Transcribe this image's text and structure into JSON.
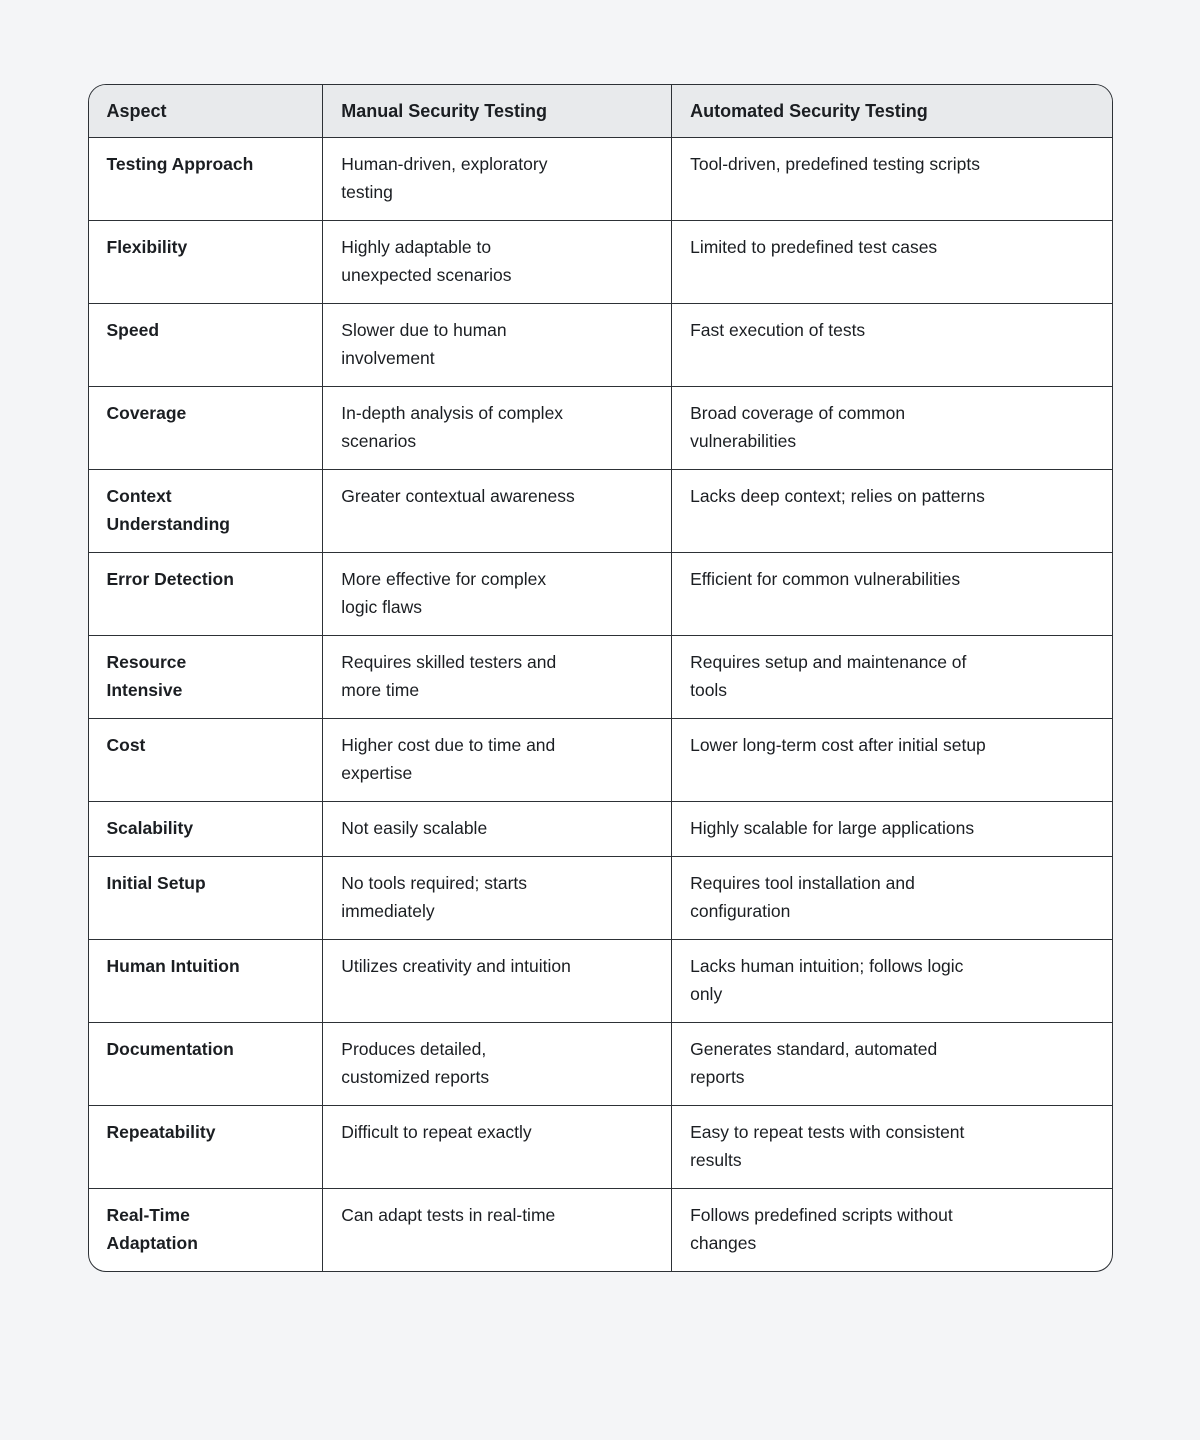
{
  "style": {
    "page_background": "#f4f5f7",
    "card_background": "#ffffff",
    "header_background": "#e8eaec",
    "border_color": "#2d3136",
    "text_color": "#1b1e22"
  },
  "table": {
    "columns": [
      "Aspect",
      "Manual Security Testing",
      "Automated Security Testing"
    ],
    "rows": [
      {
        "aspect": "Testing Approach",
        "manual": "Human-driven, exploratory\ntesting",
        "automated": "Tool-driven, predefined testing scripts"
      },
      {
        "aspect": "Flexibility",
        "manual": "Highly adaptable to\nunexpected scenarios",
        "automated": "Limited to predefined test cases"
      },
      {
        "aspect": "Speed",
        "manual": "Slower due to human\ninvolvement",
        "automated": "Fast execution of tests"
      },
      {
        "aspect": "Coverage",
        "manual": "In-depth analysis of complex\nscenarios",
        "automated": "Broad coverage of common\nvulnerabilities"
      },
      {
        "aspect": "Context\nUnderstanding",
        "manual": "Greater contextual awareness",
        "automated": "Lacks deep context; relies on patterns"
      },
      {
        "aspect": "Error Detection",
        "manual": "More effective for complex\nlogic flaws",
        "automated": "Efficient for common vulnerabilities"
      },
      {
        "aspect": "Resource\nIntensive",
        "manual": "Requires skilled testers and\nmore time",
        "automated": "Requires setup and maintenance of\ntools"
      },
      {
        "aspect": "Cost",
        "manual": "Higher cost due to time and\nexpertise",
        "automated": "Lower long-term cost after initial setup"
      },
      {
        "aspect": "Scalability",
        "manual": "Not easily scalable",
        "automated": "Highly scalable for large applications"
      },
      {
        "aspect": "Initial Setup",
        "manual": "No tools required; starts\nimmediately",
        "automated": "Requires tool installation and\nconfiguration"
      },
      {
        "aspect": "Human Intuition",
        "manual": "Utilizes creativity and intuition",
        "automated": "Lacks human intuition; follows logic\nonly"
      },
      {
        "aspect": "Documentation",
        "manual": "Produces detailed,\ncustomized reports",
        "automated": "Generates standard, automated\nreports"
      },
      {
        "aspect": "Repeatability",
        "manual": "Difficult to repeat exactly",
        "automated": "Easy to repeat tests with consistent\nresults"
      },
      {
        "aspect": "Real-Time\nAdaptation",
        "manual": "Can adapt tests in real-time",
        "automated": "Follows predefined scripts without\nchanges"
      }
    ]
  }
}
